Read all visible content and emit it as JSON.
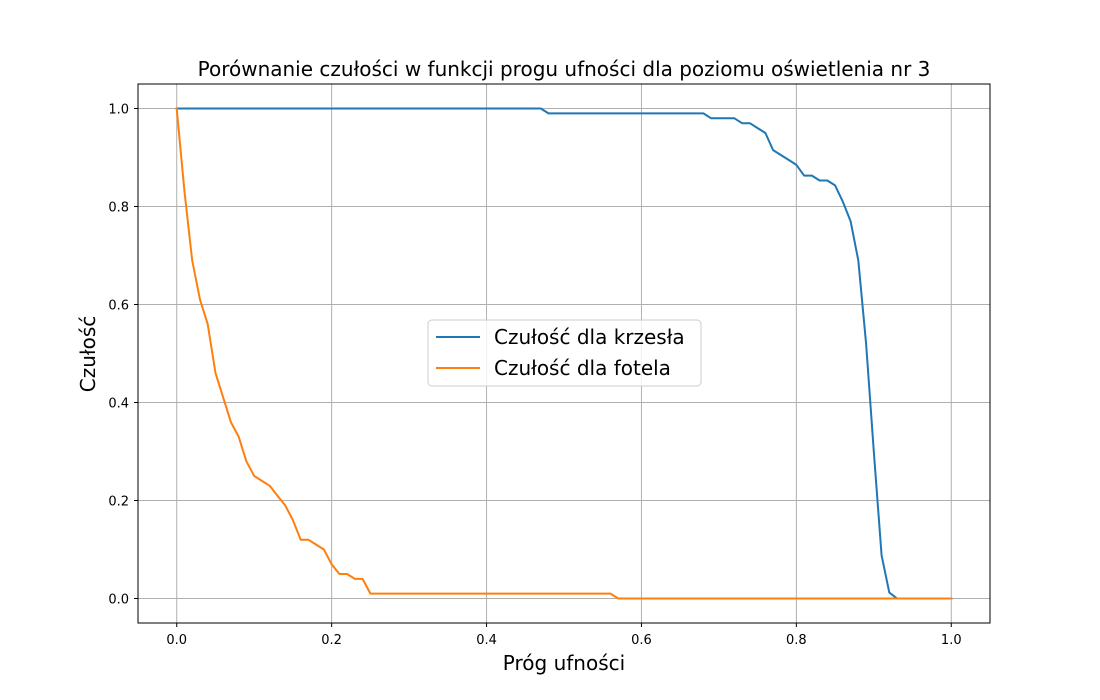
{
  "chart_data": {
    "type": "line",
    "title": "Porównanie czułości w funkcji progu ufności dla poziomu oświetlenia nr 3",
    "xlabel": "Próg ufności",
    "ylabel": "Czułość",
    "xlim": [
      -0.05,
      1.05
    ],
    "ylim": [
      -0.05,
      1.05
    ],
    "xticks": [
      0.0,
      0.2,
      0.4,
      0.6,
      0.8,
      1.0
    ],
    "xtick_labels": [
      "0.0",
      "0.2",
      "0.4",
      "0.6",
      "0.8",
      "1.0"
    ],
    "yticks": [
      0.0,
      0.2,
      0.4,
      0.6,
      0.8,
      1.0
    ],
    "ytick_labels": [
      "0.0",
      "0.2",
      "0.4",
      "0.6",
      "0.8",
      "1.0"
    ],
    "grid": true,
    "legend_position": "center",
    "series": [
      {
        "name": "Czułość dla krzesła",
        "color": "#1f77b4",
        "x": [
          0.0,
          0.47,
          0.48,
          0.55,
          0.68,
          0.69,
          0.72,
          0.73,
          0.74,
          0.75,
          0.76,
          0.77,
          0.79,
          0.8,
          0.81,
          0.82,
          0.83,
          0.84,
          0.85,
          0.86,
          0.87,
          0.88,
          0.89,
          0.9,
          0.91,
          0.92,
          0.93,
          0.95,
          1.0
        ],
        "y": [
          1.0,
          1.0,
          0.99,
          0.99,
          0.99,
          0.98,
          0.98,
          0.97,
          0.97,
          0.96,
          0.95,
          0.915,
          0.895,
          0.885,
          0.863,
          0.863,
          0.853,
          0.853,
          0.843,
          0.81,
          0.77,
          0.69,
          0.52,
          0.3,
          0.088,
          0.012,
          0.0,
          0.0,
          0.0
        ]
      },
      {
        "name": "Czułość dla fotela",
        "color": "#ff7f0e",
        "x": [
          0.0,
          0.01,
          0.02,
          0.03,
          0.04,
          0.05,
          0.06,
          0.07,
          0.08,
          0.09,
          0.1,
          0.11,
          0.12,
          0.13,
          0.14,
          0.15,
          0.16,
          0.17,
          0.18,
          0.19,
          0.2,
          0.21,
          0.22,
          0.23,
          0.24,
          0.25,
          0.3,
          0.4,
          0.5,
          0.56,
          0.57,
          0.6,
          0.8,
          1.0
        ],
        "y": [
          1.0,
          0.83,
          0.69,
          0.61,
          0.56,
          0.46,
          0.41,
          0.36,
          0.33,
          0.28,
          0.25,
          0.24,
          0.23,
          0.21,
          0.19,
          0.16,
          0.12,
          0.12,
          0.11,
          0.1,
          0.07,
          0.05,
          0.05,
          0.04,
          0.04,
          0.01,
          0.01,
          0.01,
          0.01,
          0.01,
          0.0,
          0.0,
          0.0,
          0.0
        ]
      }
    ]
  }
}
